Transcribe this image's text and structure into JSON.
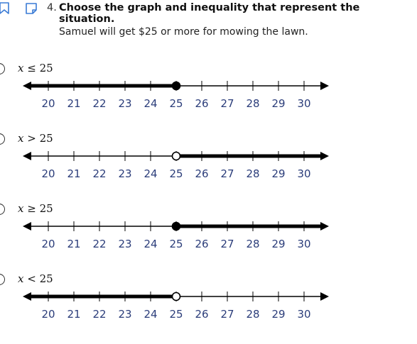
{
  "question": {
    "number": "4.",
    "title": "Choose the graph and inequality that represent the situation.",
    "situation": "Samuel will get $25 or more for mowing the lawn."
  },
  "icons": {
    "bookmark": "bookmark-icon",
    "note": "note-icon"
  },
  "colors": {
    "tick_labels": "#2b3d7a",
    "line": "#000000"
  },
  "axis": {
    "min": 20,
    "max": 30,
    "tick_labels": [
      "20",
      "21",
      "22",
      "23",
      "24",
      "25",
      "26",
      "27",
      "28",
      "29",
      "30"
    ]
  },
  "options": [
    {
      "variable": "x",
      "symbol": "≤",
      "value": "25",
      "point": 25,
      "closed": true,
      "direction": "left"
    },
    {
      "variable": "x",
      "symbol": ">",
      "value": "25",
      "point": 25,
      "closed": false,
      "direction": "right"
    },
    {
      "variable": "x",
      "symbol": "≥",
      "value": "25",
      "point": 25,
      "closed": true,
      "direction": "right"
    },
    {
      "variable": "x",
      "symbol": "<",
      "value": "25",
      "point": 25,
      "closed": false,
      "direction": "left"
    }
  ]
}
